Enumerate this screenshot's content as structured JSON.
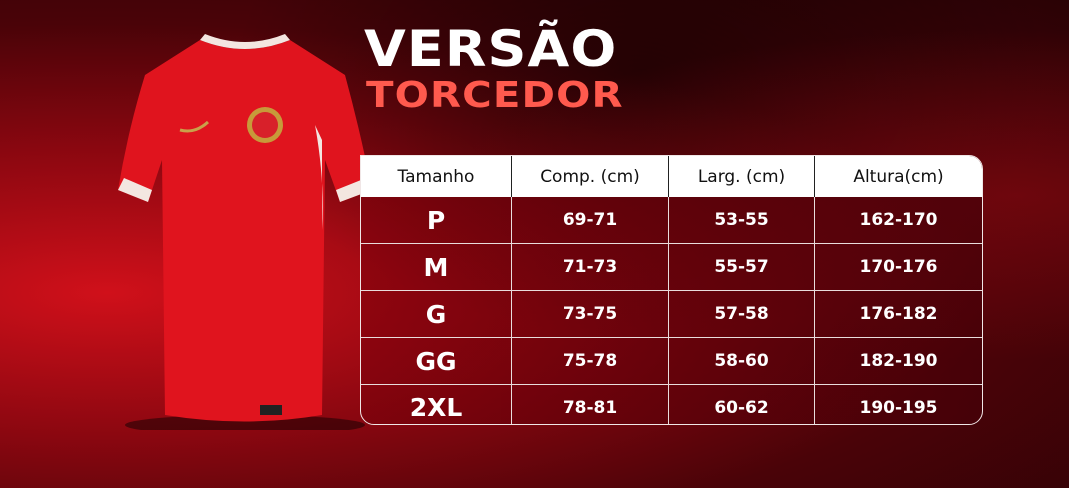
{
  "title": {
    "line1": "VERSÃO",
    "line2": "TORCEDOR"
  },
  "colors": {
    "title_accent": "#ff5a4e",
    "background": "#8a0710",
    "shirt": "#e0141e"
  },
  "table": {
    "headers": [
      "Tamanho",
      "Comp. (cm)",
      "Larg. (cm)",
      "Altura(cm)"
    ],
    "rows": [
      [
        "P",
        "69-71",
        "53-55",
        "162-170"
      ],
      [
        "M",
        "71-73",
        "55-57",
        "170-176"
      ],
      [
        "G",
        "73-75",
        "57-58",
        "176-182"
      ],
      [
        "GG",
        "75-78",
        "58-60",
        "182-190"
      ],
      [
        "2XL",
        "78-81",
        "60-62",
        "190-195"
      ]
    ]
  }
}
